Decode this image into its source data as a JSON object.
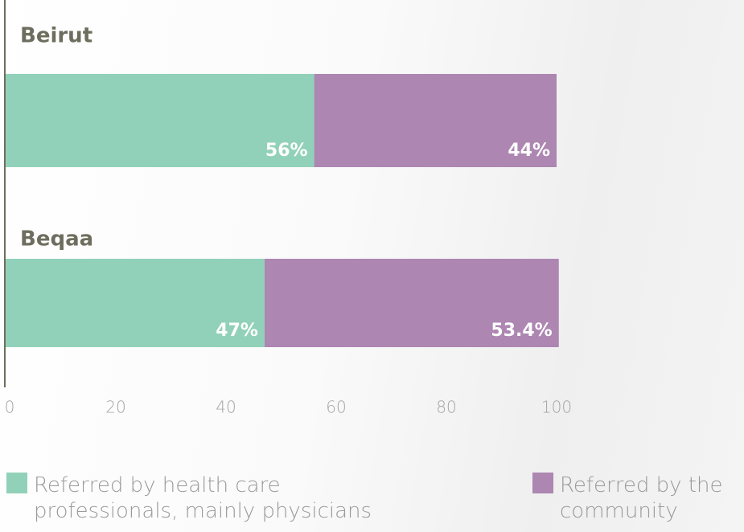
{
  "chart_data": {
    "type": "stacked-bar-horizontal",
    "categories": [
      "Beirut",
      "Beqaa"
    ],
    "series": [
      {
        "name": "Referred by health care professionals, mainly physicians",
        "color": "#92d1b9",
        "values": [
          56,
          47
        ],
        "value_labels": [
          "56%",
          "47%"
        ]
      },
      {
        "name": "Referred by the community",
        "color": "#ad86b2",
        "values": [
          44,
          53.4
        ],
        "value_labels": [
          "44%",
          "53.4%"
        ]
      }
    ],
    "xlim": [
      0,
      100
    ],
    "xticks": [
      0,
      20,
      40,
      60,
      80,
      100
    ]
  }
}
